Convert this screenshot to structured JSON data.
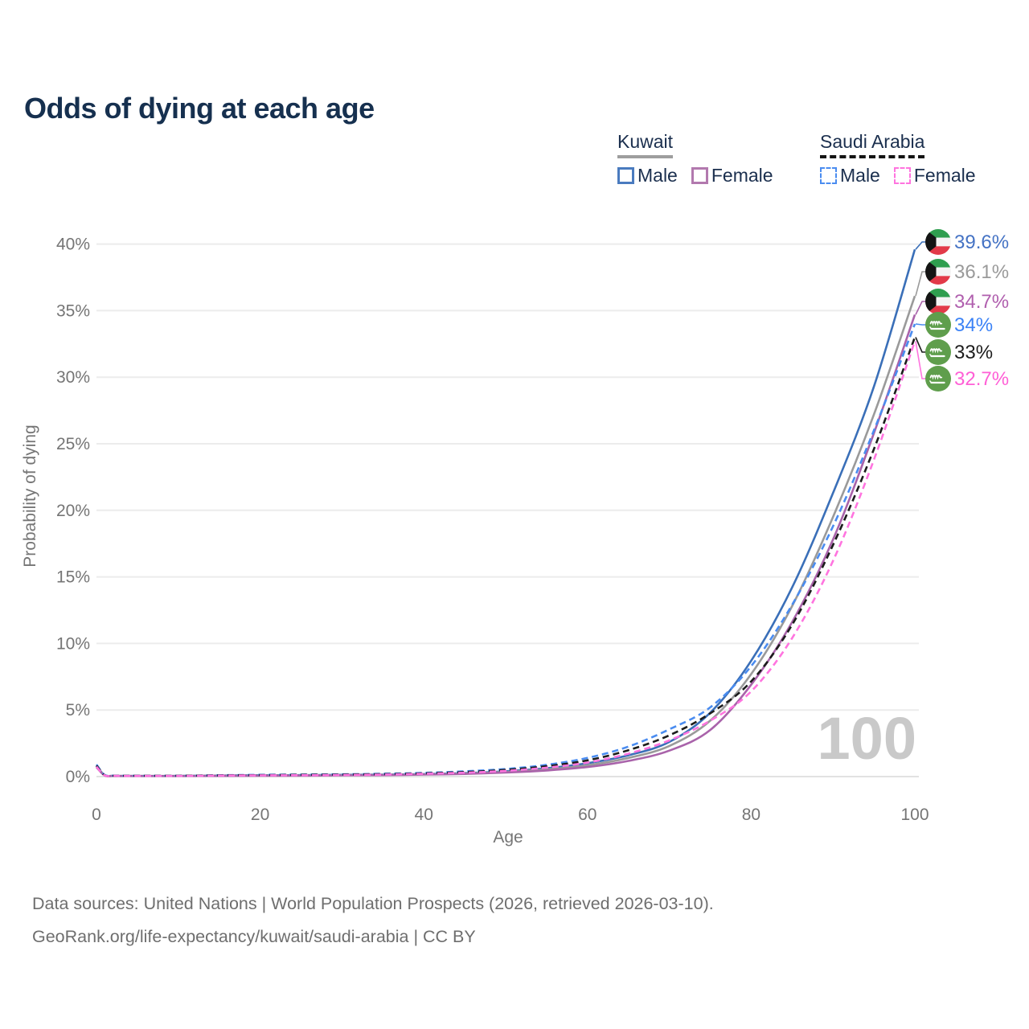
{
  "title": "Odds of dying at each age",
  "legend": {
    "groups": [
      {
        "name": "Kuwait",
        "line_style": "solid",
        "underline_color": "#9e9e9e",
        "items": [
          {
            "label": "Male",
            "color": "#4a7bbf",
            "dashed": false
          },
          {
            "label": "Female",
            "color": "#b279ae",
            "dashed": false
          }
        ]
      },
      {
        "name": "Saudi Arabia",
        "line_style": "dashed",
        "underline_color": "#141414",
        "items": [
          {
            "label": "Male",
            "color": "#4a8cf0",
            "dashed": true
          },
          {
            "label": "Female",
            "color": "#ff74df",
            "dashed": true
          }
        ]
      }
    ]
  },
  "chart_data": {
    "type": "line",
    "title": "Odds of dying at each age",
    "xlabel": "Age",
    "ylabel": "Probability of dying",
    "watermark": "100",
    "xlim": [
      0,
      100
    ],
    "ylim": [
      0,
      40
    ],
    "y_unit": "%",
    "grid": "horizontal",
    "legend_position": "top-right",
    "x_ticks": [
      "0",
      "20",
      "40",
      "60",
      "80",
      "100"
    ],
    "y_ticks": [
      "0%",
      "5%",
      "10%",
      "15%",
      "20%",
      "25%",
      "30%",
      "35%",
      "40%"
    ],
    "ages": [
      0,
      1,
      2,
      3,
      5,
      10,
      15,
      20,
      25,
      30,
      35,
      40,
      45,
      50,
      55,
      60,
      65,
      70,
      75,
      80,
      85,
      90,
      95,
      100
    ],
    "series": [
      {
        "id": "kuwait-male",
        "name": "Kuwait Male",
        "country": "kuwait",
        "color": "#3a6fb8",
        "dashed": false,
        "end_label": "39.6%",
        "label_color": "#4472c4",
        "values": [
          0.8,
          0.1,
          0.06,
          0.05,
          0.05,
          0.05,
          0.08,
          0.1,
          0.11,
          0.13,
          0.15,
          0.19,
          0.26,
          0.4,
          0.62,
          1.0,
          1.6,
          2.6,
          4.8,
          8.7,
          14.2,
          21.3,
          29.3,
          39.6
        ]
      },
      {
        "id": "kuwait-both",
        "name": "Kuwait Both sexes",
        "country": "kuwait",
        "color": "#9a9a9a",
        "dashed": false,
        "end_label": "36.1%",
        "label_color": "#9a9a9a",
        "values": [
          0.75,
          0.09,
          0.06,
          0.05,
          0.05,
          0.05,
          0.07,
          0.08,
          0.09,
          0.11,
          0.13,
          0.17,
          0.23,
          0.35,
          0.54,
          0.85,
          1.4,
          2.3,
          4.2,
          7.7,
          12.8,
          19.5,
          27.2,
          36.1
        ]
      },
      {
        "id": "kuwait-female",
        "name": "Kuwait Female",
        "country": "kuwait",
        "color": "#a963aa",
        "dashed": false,
        "end_label": "34.7%",
        "label_color": "#b05fae",
        "values": [
          0.7,
          0.08,
          0.05,
          0.04,
          0.04,
          0.04,
          0.05,
          0.06,
          0.07,
          0.09,
          0.11,
          0.15,
          0.2,
          0.3,
          0.46,
          0.72,
          1.18,
          1.95,
          3.5,
          6.9,
          11.6,
          17.8,
          25.8,
          34.7
        ]
      },
      {
        "id": "saudi-male",
        "name": "Saudi Arabia Male",
        "country": "saudi",
        "color": "#4a8cf0",
        "dashed": true,
        "end_label": "34%",
        "label_color": "#3b82f6",
        "values": [
          0.9,
          0.12,
          0.07,
          0.06,
          0.06,
          0.06,
          0.1,
          0.13,
          0.15,
          0.17,
          0.21,
          0.28,
          0.39,
          0.57,
          0.88,
          1.4,
          2.25,
          3.55,
          5.2,
          8.3,
          12.9,
          18.8,
          26.0,
          34.0
        ]
      },
      {
        "id": "saudi-both",
        "name": "Saudi Arabia Both sexes",
        "country": "saudi",
        "color": "#1c1c1c",
        "dashed": true,
        "end_label": "33%",
        "label_color": "#1c1c1c",
        "values": [
          0.83,
          0.1,
          0.06,
          0.06,
          0.06,
          0.06,
          0.09,
          0.11,
          0.13,
          0.15,
          0.18,
          0.24,
          0.34,
          0.5,
          0.78,
          1.22,
          1.98,
          3.1,
          4.75,
          7.15,
          11.4,
          17.4,
          24.6,
          33.0
        ]
      },
      {
        "id": "saudi-female",
        "name": "Saudi Arabia Female",
        "country": "saudi",
        "color": "#ff74df",
        "dashed": true,
        "end_label": "32.7%",
        "label_color": "#ff5fd6",
        "values": [
          0.75,
          0.09,
          0.06,
          0.05,
          0.05,
          0.05,
          0.07,
          0.09,
          0.1,
          0.12,
          0.15,
          0.21,
          0.29,
          0.43,
          0.67,
          1.05,
          1.72,
          2.72,
          4.2,
          6.4,
          10.4,
          16.2,
          23.8,
          32.7
        ]
      }
    ]
  },
  "footer": {
    "line1": "Data sources: United Nations | World Population Prospects (2026, retrieved 2026-03-10).",
    "line2": "GeoRank.org/life-expectancy/kuwait/saudi-arabia | CC BY"
  }
}
